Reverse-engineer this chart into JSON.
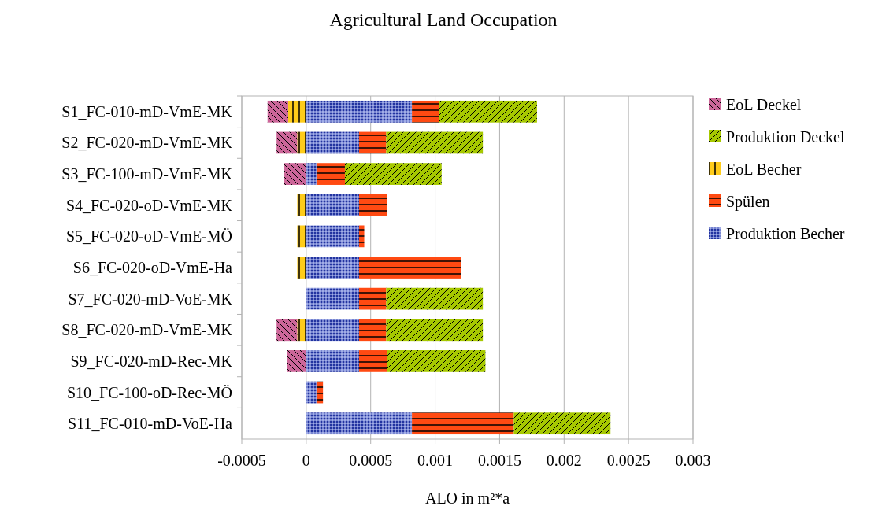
{
  "chart_data": {
    "type": "bar",
    "orientation": "horizontal",
    "stacked": true,
    "title": "Agricultural Land Occupation",
    "xlabel": "ALO in m²*a",
    "categories": [
      "S1_FC-010-mD-VmE-MK",
      "S2_FC-020-mD-VmE-MK",
      "S3_FC-100-mD-VmE-MK",
      "S4_FC-020-oD-VmE-MK",
      "S5_FC-020-oD-VmE-MÖ",
      "S6_FC-020-oD-VmE-Ha",
      "S7_FC-020-mD-VoE-MK",
      "S8_FC-020-mD-VmE-MK",
      "S9_FC-020-mD-Rec-MK",
      "S10_FC-100-oD-Rec-MÖ",
      "S11_FC-010-mD-VoE-Ha"
    ],
    "series": [
      {
        "name": "Produktion Becher",
        "color": "#2233a0",
        "values": [
          0.00082,
          0.00041,
          8e-05,
          0.00041,
          0.00041,
          0.00041,
          0.00041,
          0.00041,
          0.00041,
          8e-05,
          0.00082
        ]
      },
      {
        "name": "Spülen",
        "color": "#ff4a12",
        "values": [
          0.00021,
          0.00021,
          0.00022,
          0.00022,
          4e-05,
          0.00079,
          0.00021,
          0.00021,
          0.00022,
          5e-05,
          0.00079
        ]
      },
      {
        "name": "EoL Becher",
        "color": "#ffcc1a",
        "values": [
          -0.00014,
          -7e-05,
          null,
          -7e-05,
          -7e-05,
          -7e-05,
          null,
          -7e-05,
          null,
          null,
          null
        ]
      },
      {
        "name": "Produktion Deckel",
        "color": "#a6c800",
        "values": [
          0.00076,
          0.00075,
          0.00075,
          null,
          null,
          null,
          0.00075,
          0.00075,
          0.00076,
          null,
          0.00075
        ]
      },
      {
        "name": "EoL Deckel",
        "color": "#cc6699",
        "values": [
          -0.00016,
          -0.00016,
          -0.00017,
          null,
          null,
          null,
          null,
          -0.00016,
          -0.00015,
          null,
          null
        ]
      }
    ],
    "xlim": [
      -0.0005,
      0.003
    ],
    "xticks": [
      -0.0005,
      0,
      0.0005,
      0.001,
      0.0015,
      0.002,
      0.0025,
      0.003
    ],
    "grid": "x",
    "legend": "right"
  }
}
